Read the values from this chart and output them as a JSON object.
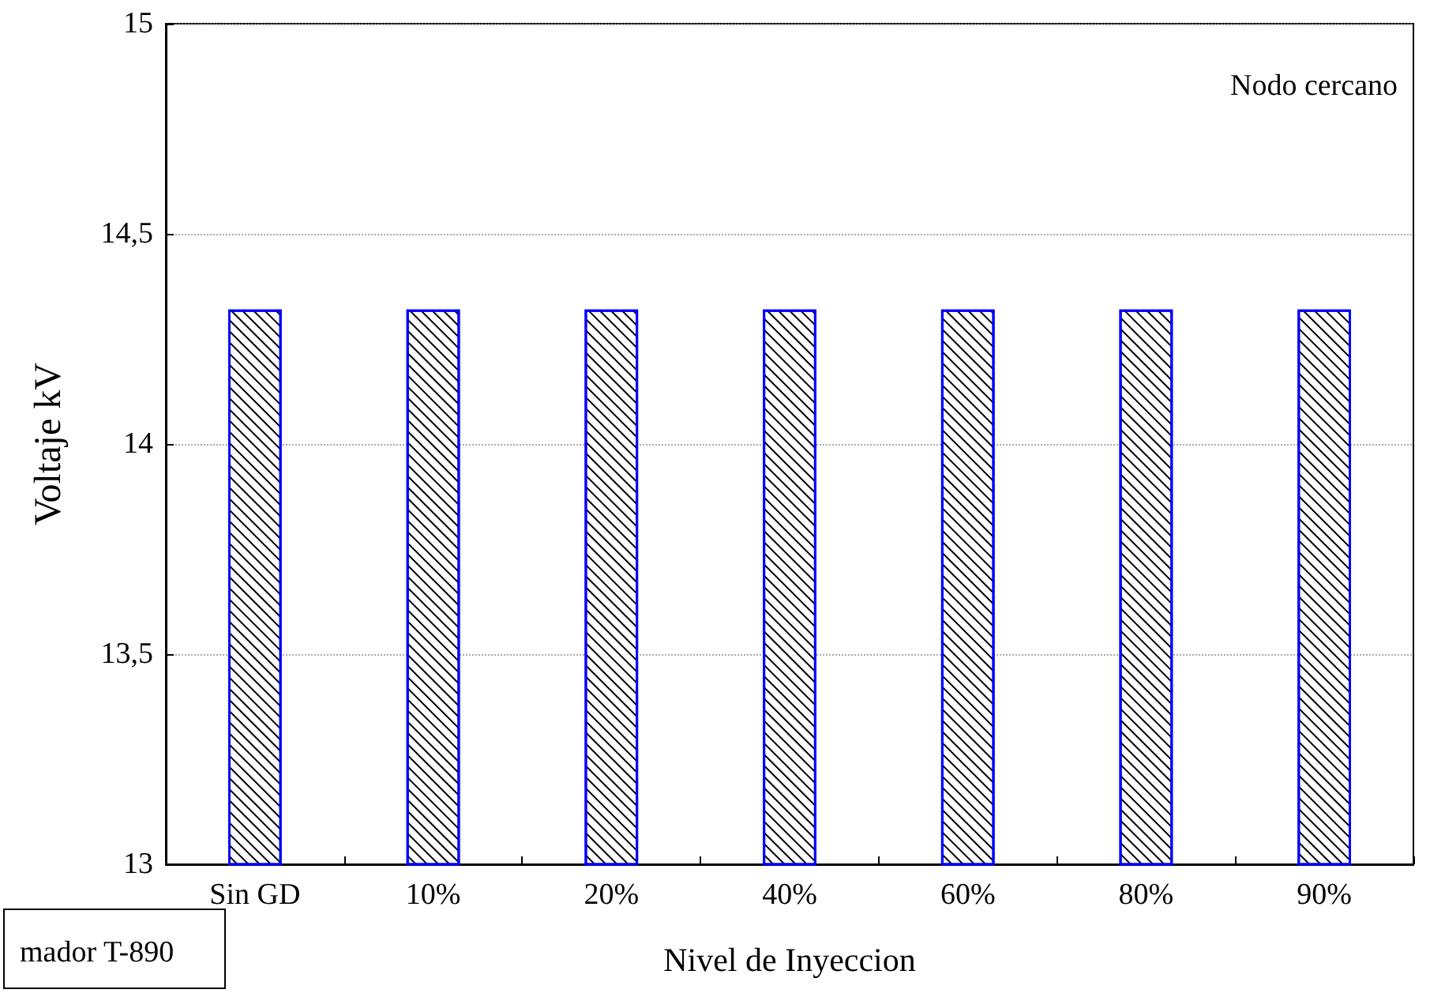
{
  "chart_data": {
    "type": "bar",
    "xlabel": "Nivel de Inyeccion",
    "ylabel": "Voltaje kV",
    "categories": [
      "Sin GD",
      "10%",
      "20%",
      "40%",
      "60%",
      "80%",
      "90%"
    ],
    "values": [
      14.32,
      14.32,
      14.32,
      14.32,
      14.32,
      14.32,
      14.32
    ],
    "color": "#0000ff",
    "ylim": [
      13,
      15
    ],
    "yticks": [
      {
        "value": 13,
        "label": "13"
      },
      {
        "value": 13.5,
        "label": "13,5"
      },
      {
        "value": 14,
        "label": "14"
      },
      {
        "value": 14.5,
        "label": "14,5"
      },
      {
        "value": 15,
        "label": "15"
      }
    ],
    "grid": "y",
    "annotations": [
      "Nodo cercano",
      "mador T-890"
    ]
  }
}
